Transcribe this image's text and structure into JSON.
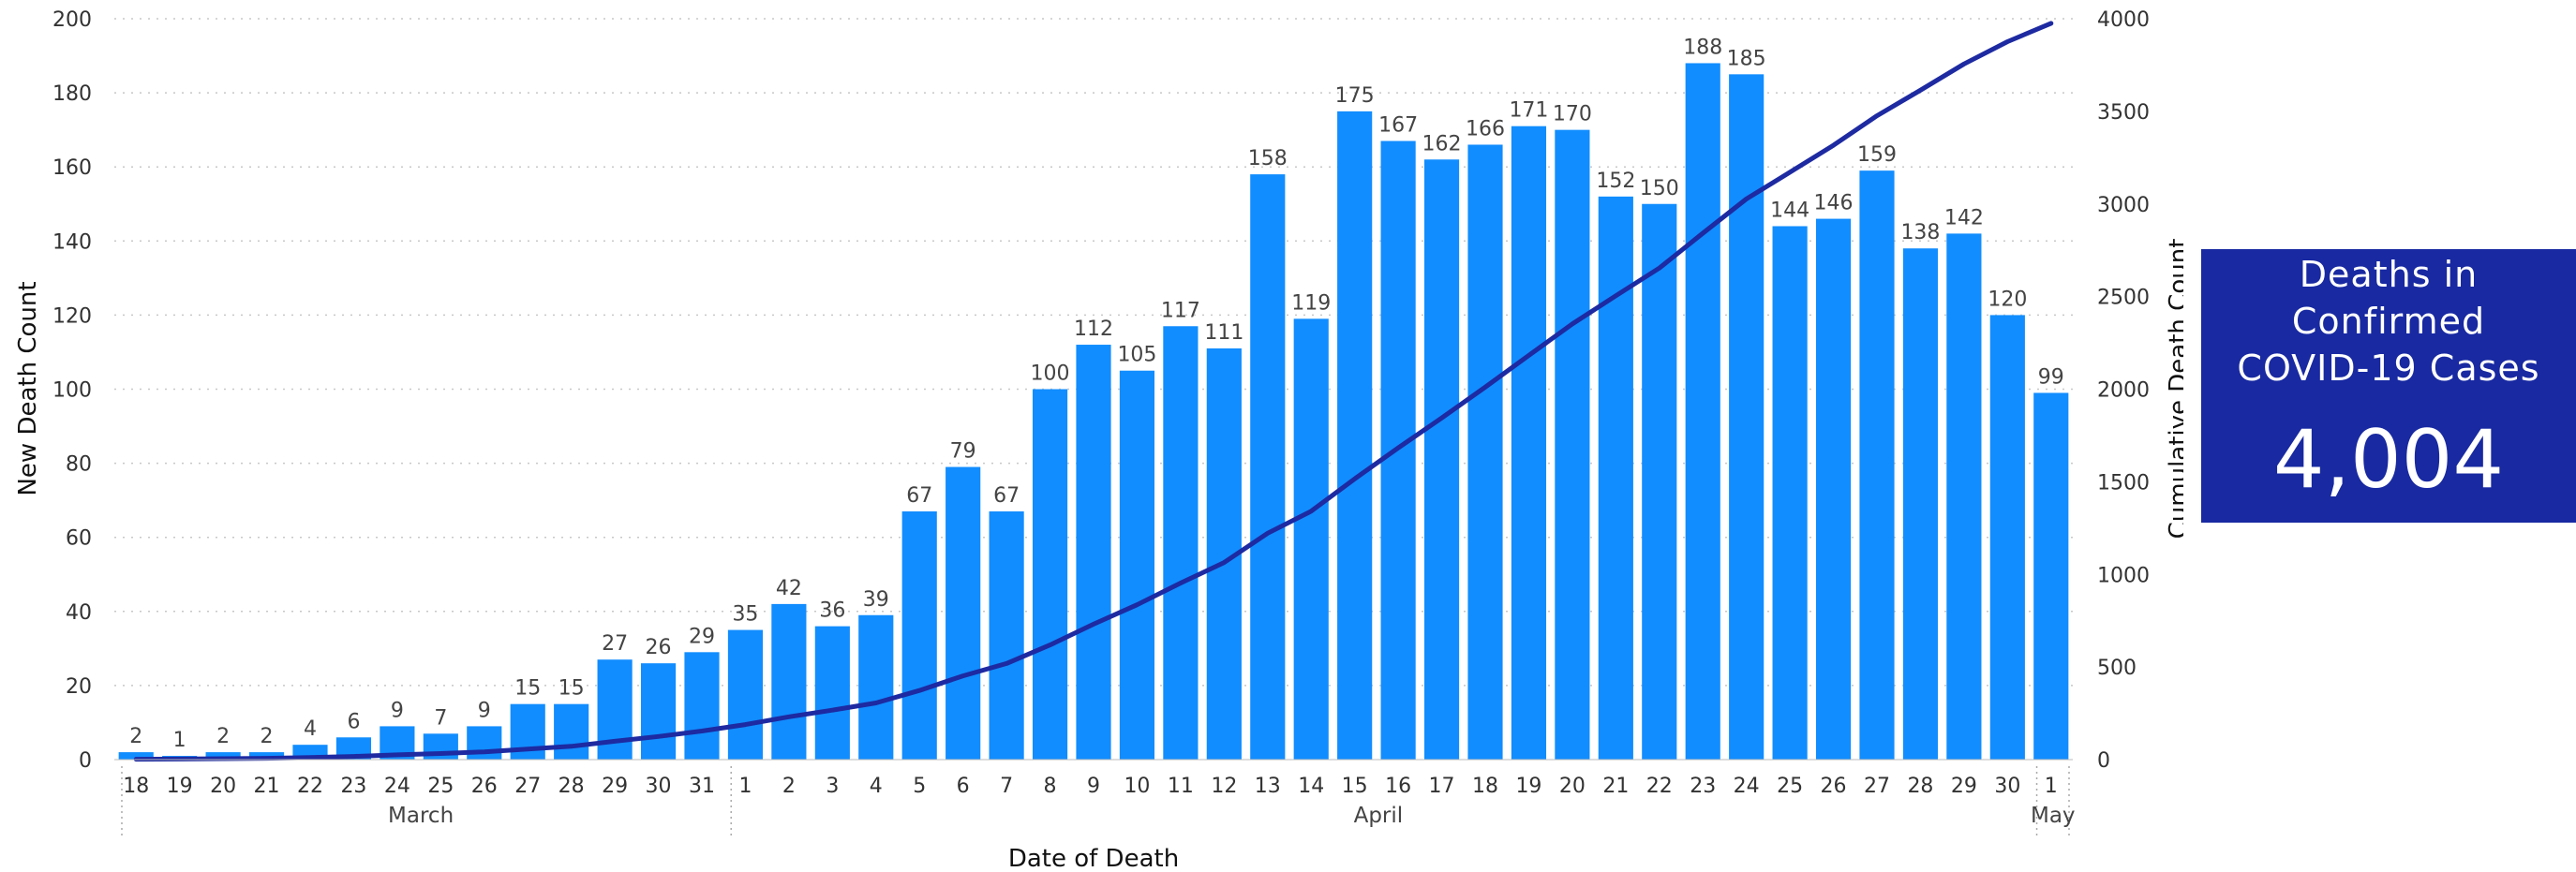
{
  "kpi": {
    "title": "Deaths in\nConfirmed\nCOVID-19 Cases",
    "value": "4,004",
    "bg_color": "#1829a1"
  },
  "chart_data": {
    "type": "bar",
    "title": "",
    "xlabel": "Date of Death",
    "ylabel": "New Death Count",
    "y2label": "Cumulative Death Count",
    "ylim": [
      0,
      200
    ],
    "y2lim": [
      0,
      4000
    ],
    "yticks": [
      "0",
      "20",
      "40",
      "60",
      "80",
      "100",
      "120",
      "140",
      "160",
      "180",
      "200"
    ],
    "y2ticks": [
      "0",
      "500",
      "1000",
      "1500",
      "2000",
      "2500",
      "3000",
      "3500",
      "4000"
    ],
    "grid": true,
    "categories": [
      "18",
      "19",
      "20",
      "21",
      "22",
      "23",
      "24",
      "25",
      "26",
      "27",
      "28",
      "29",
      "30",
      "31",
      "1",
      "2",
      "3",
      "4",
      "5",
      "6",
      "7",
      "8",
      "9",
      "10",
      "11",
      "12",
      "13",
      "14",
      "15",
      "16",
      "17",
      "18",
      "19",
      "20",
      "21",
      "22",
      "23",
      "24",
      "25",
      "26",
      "27",
      "28",
      "29",
      "30",
      "1"
    ],
    "category_groups": [
      {
        "label": "March",
        "start": 0,
        "end": 13
      },
      {
        "label": "April",
        "start": 14,
        "end": 43
      },
      {
        "label": "May",
        "start": 44,
        "end": 44
      }
    ],
    "series": [
      {
        "type": "bar",
        "color": "#118dff",
        "values": [
          2,
          1,
          2,
          2,
          4,
          6,
          9,
          7,
          9,
          15,
          15,
          27,
          26,
          29,
          35,
          42,
          36,
          39,
          67,
          79,
          67,
          100,
          112,
          105,
          117,
          111,
          158,
          119,
          175,
          167,
          162,
          166,
          171,
          170,
          152,
          150,
          188,
          185,
          144,
          146,
          159,
          138,
          142,
          120,
          99
        ]
      },
      {
        "type": "line",
        "axis": "secondary",
        "color": "#1d2aa1",
        "values": [
          2,
          3,
          5,
          7,
          11,
          17,
          26,
          33,
          42,
          57,
          72,
          99,
          125,
          154,
          189,
          231,
          267,
          306,
          373,
          452,
          519,
          619,
          731,
          836,
          953,
          1064,
          1222,
          1341,
          1516,
          1683,
          1845,
          2011,
          2182,
          2352,
          2504,
          2654,
          2842,
          3027,
          3171,
          3317,
          3476,
          3614,
          3756,
          3876,
          3975
        ]
      }
    ]
  }
}
